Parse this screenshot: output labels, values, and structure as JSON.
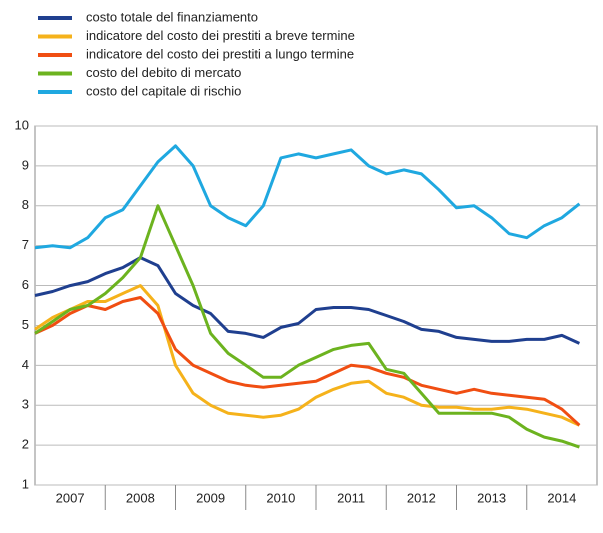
{
  "chart_data": {
    "type": "line",
    "x": [
      2007.0,
      2007.25,
      2007.5,
      2007.75,
      2008.0,
      2008.25,
      2008.5,
      2008.75,
      2009.0,
      2009.25,
      2009.5,
      2009.75,
      2010.0,
      2010.25,
      2010.5,
      2010.75,
      2011.0,
      2011.25,
      2011.5,
      2011.75,
      2012.0,
      2012.25,
      2012.5,
      2012.75,
      2013.0,
      2013.25,
      2013.5,
      2013.75,
      2014.0,
      2014.25,
      2014.5,
      2014.75
    ],
    "series": [
      {
        "name": "costo totale del finanziamento",
        "color": "#1f3f8f",
        "values": [
          5.75,
          5.85,
          6.0,
          6.1,
          6.3,
          6.45,
          6.7,
          6.5,
          5.8,
          5.5,
          5.3,
          4.85,
          4.8,
          4.7,
          4.95,
          5.05,
          5.4,
          5.45,
          5.45,
          5.4,
          5.25,
          5.1,
          4.9,
          4.85,
          4.7,
          4.65,
          4.6,
          4.6,
          4.65,
          4.65,
          4.75,
          4.55
        ]
      },
      {
        "name": "indicatore del costo dei prestiti a breve termine",
        "color": "#f5b21b",
        "values": [
          4.9,
          5.2,
          5.4,
          5.6,
          5.6,
          5.8,
          6.0,
          5.5,
          4.0,
          3.3,
          3.0,
          2.8,
          2.75,
          2.7,
          2.75,
          2.9,
          3.2,
          3.4,
          3.55,
          3.6,
          3.3,
          3.2,
          3.0,
          2.95,
          2.95,
          2.9,
          2.9,
          2.95,
          2.9,
          2.8,
          2.7,
          2.5
        ]
      },
      {
        "name": "indicatore del costo dei prestiti a lungo termine",
        "color": "#f04e12",
        "values": [
          4.8,
          5.0,
          5.3,
          5.5,
          5.4,
          5.6,
          5.7,
          5.3,
          4.4,
          4.0,
          3.8,
          3.6,
          3.5,
          3.45,
          3.5,
          3.55,
          3.6,
          3.8,
          4.0,
          3.95,
          3.8,
          3.7,
          3.5,
          3.4,
          3.3,
          3.4,
          3.3,
          3.25,
          3.2,
          3.15,
          2.9,
          2.5
        ]
      },
      {
        "name": "costo del debito di mercato",
        "color": "#6cb31f",
        "values": [
          4.8,
          5.1,
          5.4,
          5.5,
          5.8,
          6.2,
          6.7,
          8.0,
          7.0,
          6.0,
          4.8,
          4.3,
          4.0,
          3.7,
          3.7,
          4.0,
          4.2,
          4.4,
          4.5,
          4.55,
          3.9,
          3.8,
          3.3,
          2.8,
          2.8,
          2.8,
          2.8,
          2.7,
          2.4,
          2.2,
          2.1,
          1.95
        ]
      },
      {
        "name": "costo del capitale di rischio",
        "color": "#1fa8e0",
        "values": [
          6.95,
          7.0,
          6.95,
          7.2,
          7.7,
          7.9,
          8.5,
          9.1,
          9.5,
          9.0,
          8.0,
          7.7,
          7.5,
          8.0,
          9.2,
          9.3,
          9.2,
          9.3,
          9.4,
          9.0,
          8.8,
          8.9,
          8.8,
          8.4,
          7.95,
          8.0,
          7.7,
          7.3,
          7.2,
          7.5,
          7.7,
          8.05
        ]
      }
    ],
    "xlim": [
      2007,
      2015
    ],
    "xticks": [
      {
        "value": 2007.5,
        "label": "2007"
      },
      {
        "value": 2008.5,
        "label": "2008"
      },
      {
        "value": 2009.5,
        "label": "2009"
      },
      {
        "value": 2010.5,
        "label": "2010"
      },
      {
        "value": 2011.5,
        "label": "2011"
      },
      {
        "value": 2012.5,
        "label": "2012"
      },
      {
        "value": 2013.5,
        "label": "2013"
      },
      {
        "value": 2014.5,
        "label": "2014"
      }
    ],
    "ylim": [
      1,
      10
    ],
    "yticks": [
      1,
      2,
      3,
      4,
      5,
      6,
      7,
      8,
      9,
      10
    ],
    "grid": true
  }
}
